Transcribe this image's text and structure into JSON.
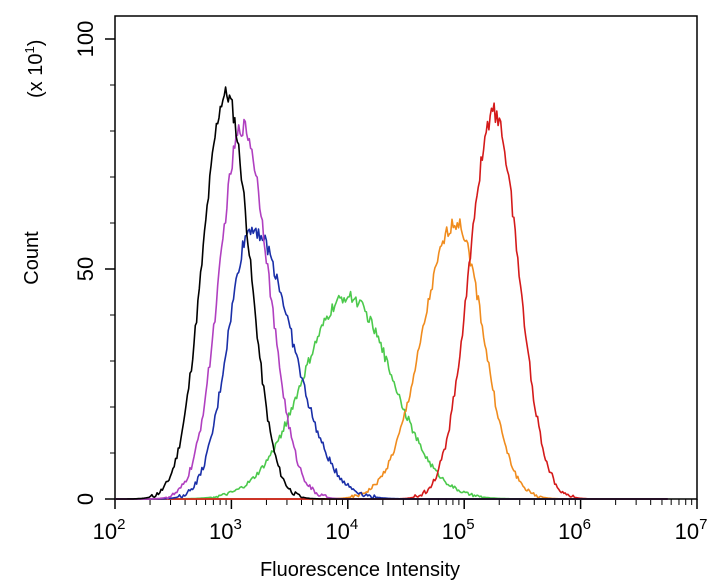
{
  "chart_data": {
    "type": "line",
    "title": "",
    "xlabel": "Fluorescence Intensity",
    "ylabel": "Count",
    "y_multiplier_label": "(x 10",
    "y_multiplier_exp": "1",
    "y_multiplier_close": ")",
    "x_scale": "log",
    "xlim": [
      100,
      10000000
    ],
    "ylim": [
      0,
      105
    ],
    "x_ticks": [
      {
        "value": 100,
        "base": "10",
        "exp": "2"
      },
      {
        "value": 1000,
        "base": "10",
        "exp": "3"
      },
      {
        "value": 10000,
        "base": "10",
        "exp": "4"
      },
      {
        "value": 100000,
        "base": "10",
        "exp": "5"
      },
      {
        "value": 1000000,
        "base": "10",
        "exp": "6"
      },
      {
        "value": 10000000,
        "base": "10",
        "exp": "7"
      }
    ],
    "y_ticks": [
      {
        "value": 0,
        "label": "0"
      },
      {
        "value": 50,
        "label": "50"
      },
      {
        "value": 100,
        "label": "100"
      }
    ],
    "grid": false,
    "legend": "none",
    "series": [
      {
        "color": "#000000",
        "peak_x": 900,
        "peak_y": 88,
        "width": 0.2,
        "skew": 0.0,
        "noise": 4
      },
      {
        "color": "#b040c0",
        "peak_x": 1250,
        "peak_y": 81,
        "width": 0.21,
        "skew": 0.05,
        "noise": 4
      },
      {
        "color": "#1a2fa8",
        "peak_x": 1500,
        "peak_y": 59,
        "width": 0.27,
        "skew": 0.25,
        "noise": 3.5
      },
      {
        "color": "#4cc94c",
        "peak_x": 10000,
        "peak_y": 44,
        "width": 0.38,
        "skew": 0.0,
        "noise": 2.5
      },
      {
        "color": "#f08c1e",
        "peak_x": 85000,
        "peak_y": 60,
        "width": 0.26,
        "skew": -0.1,
        "noise": 3
      },
      {
        "color": "#d41a1a",
        "peak_x": 180000,
        "peak_y": 84,
        "width": 0.21,
        "skew": 0.0,
        "noise": 4
      }
    ]
  }
}
